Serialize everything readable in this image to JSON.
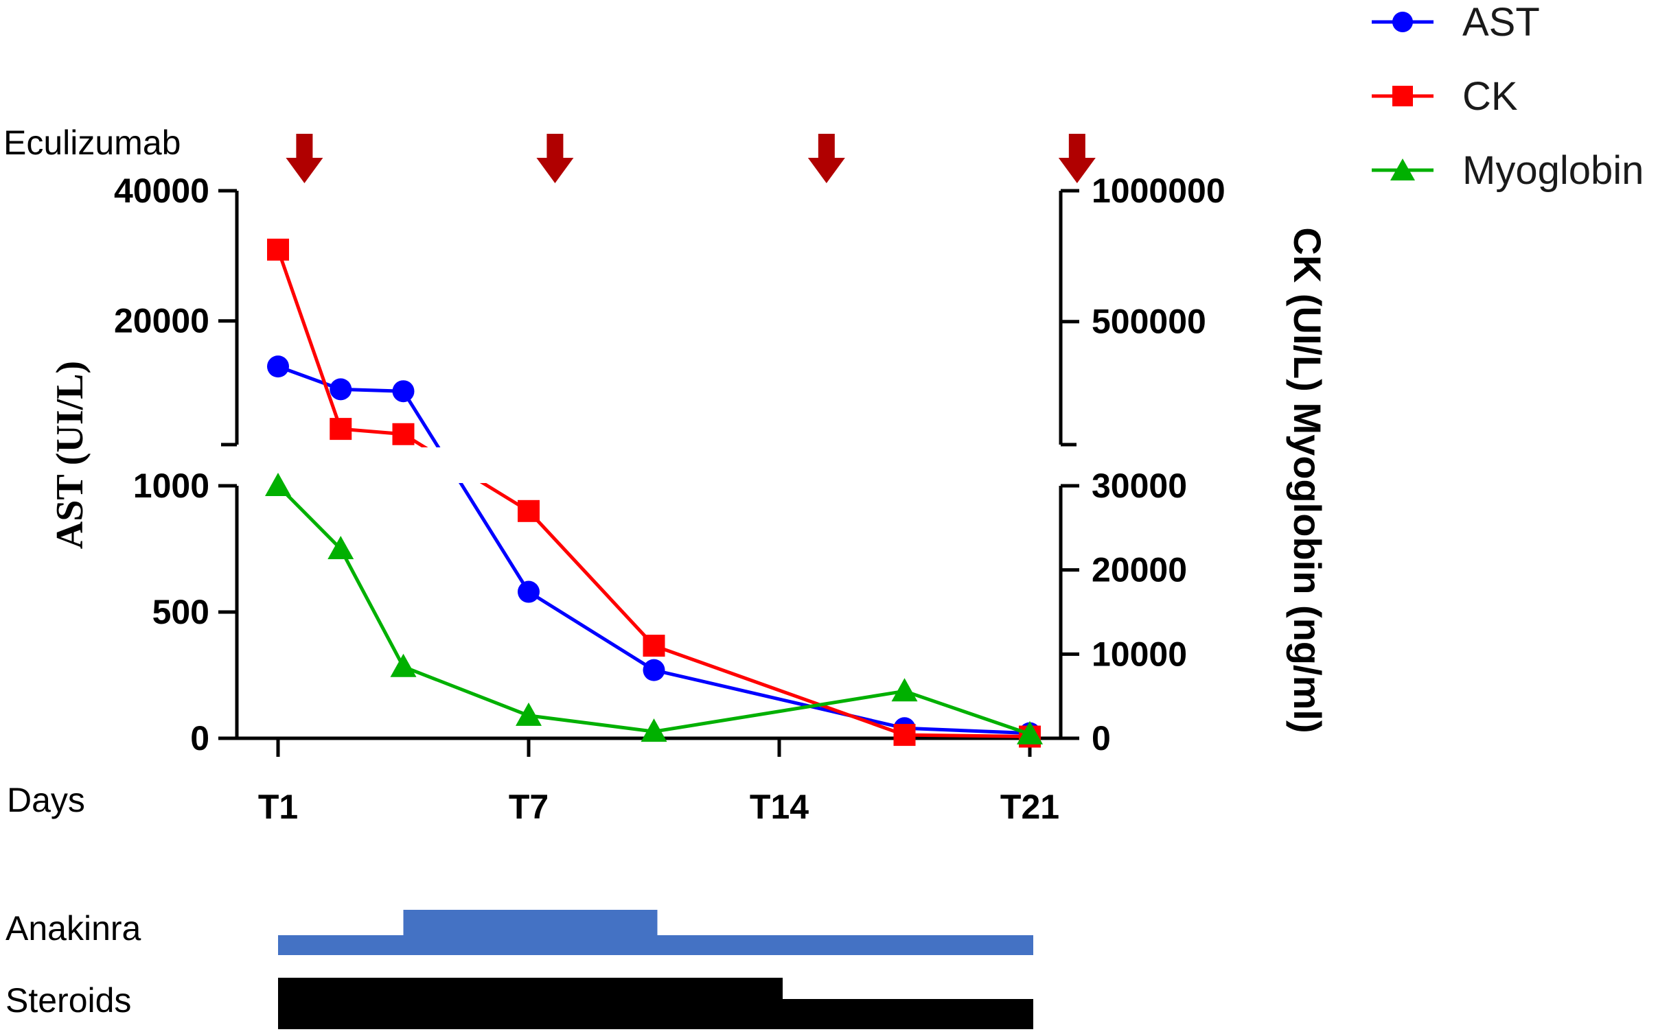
{
  "chart_data": {
    "type": "line",
    "x_categories": [
      "T1",
      "T7",
      "T14",
      "T21"
    ],
    "x_label": "Days",
    "left_axis": {
      "title": "AST (UI/L)",
      "lower_ticks": [
        "0",
        "500",
        "1000"
      ],
      "upper_ticks": [
        "20000",
        "40000"
      ],
      "lower_range": [
        0,
        1000
      ],
      "upper_range": [
        1000,
        40000
      ],
      "upper_tick_values": [
        20000,
        40000
      ]
    },
    "right_axis": {
      "title": "CK (UI/L) Myoglobin (ng/ml)",
      "lower_ticks": [
        "0",
        "10000",
        "20000",
        "30000"
      ],
      "upper_ticks": [
        "500000",
        "1000000"
      ],
      "lower_range": [
        0,
        30000
      ],
      "upper_range": [
        30000,
        1000000
      ],
      "upper_tick_values": [
        500000,
        1000000
      ]
    },
    "series": [
      {
        "name": "AST",
        "axis": "left",
        "color": "#0000ff",
        "marker": "circle",
        "x": [
          1,
          2.5,
          4,
          7,
          10,
          16,
          19
        ],
        "y": [
          13000,
          9500,
          9200,
          580,
          270,
          40,
          20
        ]
      },
      {
        "name": "CK",
        "axis": "right",
        "color": "#ff0000",
        "marker": "square",
        "x": [
          1,
          2.5,
          4,
          7,
          10,
          16,
          19
        ],
        "y": [
          775000,
          90000,
          70000,
          27000,
          11000,
          400,
          200
        ]
      },
      {
        "name": "Myoglobin",
        "axis": "right",
        "color": "#00b000",
        "marker": "triangle",
        "x": [
          1,
          2.5,
          4,
          7,
          10,
          16,
          19
        ],
        "y": [
          30000,
          22500,
          8500,
          2700,
          800,
          5600,
          500
        ]
      }
    ],
    "eculizumab": {
      "label": "Eculizumab",
      "days": [
        1.5,
        7.5,
        14,
        20
      ],
      "color": "#b00000"
    },
    "treatments": [
      {
        "label": "Anakinra",
        "color": "#4472c4",
        "segments": [
          {
            "start": 1,
            "end": 4,
            "level": "low"
          },
          {
            "start": 4,
            "end": 10,
            "level": "high"
          },
          {
            "start": 10,
            "end": 19,
            "level": "low"
          }
        ]
      },
      {
        "label": "Steroids",
        "color": "#000000",
        "segments": [
          {
            "start": 1,
            "end": 13,
            "level": "high"
          },
          {
            "start": 13,
            "end": 19,
            "level": "low"
          }
        ]
      }
    ]
  }
}
